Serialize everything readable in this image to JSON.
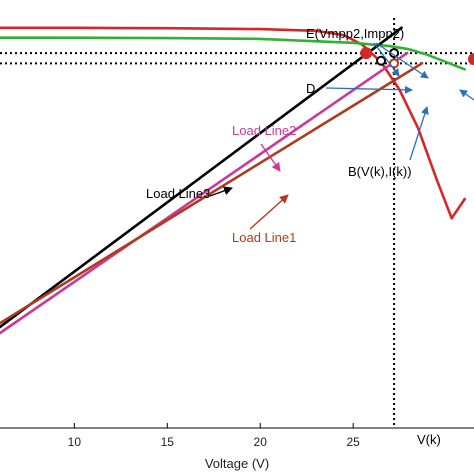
{
  "chart_data": {
    "type": "line",
    "xlabel": "Voltage (V)",
    "ylabel": "",
    "title": "",
    "x_ticks": [
      10,
      15,
      20,
      25
    ],
    "xlim": [
      6,
      31.5
    ],
    "ylim": [
      0,
      1
    ],
    "grid": false,
    "legend": "none",
    "series": [
      {
        "name": "",
        "color": "#d62728",
        "x": [
          6,
          10,
          15,
          20,
          23,
          24.5,
          25.5,
          26.5,
          27.5,
          28.5,
          29.5,
          30.3,
          31
        ],
        "y": [
          0.935,
          0.935,
          0.934,
          0.932,
          0.928,
          0.918,
          0.895,
          0.855,
          0.79,
          0.7,
          0.58,
          0.49,
          0.535
        ]
      },
      {
        "name": "",
        "color": "#32b032",
        "x": [
          6,
          10,
          15,
          20,
          25,
          27,
          28,
          29,
          30,
          31
        ],
        "y": [
          0.912,
          0.912,
          0.911,
          0.909,
          0.9,
          0.892,
          0.885,
          0.872,
          0.855,
          0.838
        ]
      },
      {
        "name": "Load Line3",
        "color": "#000000",
        "x": [
          6,
          27.6
        ],
        "y": [
          0.236,
          0.935
        ]
      },
      {
        "name": "Load Line2",
        "color": "#c9399b",
        "x": [
          6,
          27.9
        ],
        "y": [
          0.222,
          0.876
        ]
      },
      {
        "name": "Load Line1",
        "color": "#b03a1c",
        "x": [
          6,
          28.7
        ],
        "y": [
          0.245,
          0.852
        ]
      }
    ],
    "reference_lines": [
      {
        "orientation": "vertical",
        "x": 27.2
      },
      {
        "orientation": "horizontal",
        "y": 0.876
      },
      {
        "orientation": "horizontal",
        "y": 0.852
      }
    ],
    "points": [
      {
        "x": 25.7,
        "y": 0.876,
        "color": "#d62728"
      },
      {
        "x": 27.2,
        "y": 0.876,
        "color": "#000000"
      },
      {
        "x": 27.2,
        "y": 0.852,
        "color": "#b03a1c"
      },
      {
        "x": 26.5,
        "y": 0.858,
        "color": "#000000"
      },
      {
        "x": 31.5,
        "y": 0.862,
        "color": "#d62728"
      }
    ],
    "annotations": [
      {
        "text": "E(Vmpp2,Impp2)"
      },
      {
        "text": "D"
      },
      {
        "text": "B(V(k),I(k))"
      },
      {
        "text": "Load Line2"
      },
      {
        "text": "Load Line3"
      },
      {
        "text": "Load Line1"
      },
      {
        "text": "V(k)"
      }
    ]
  }
}
